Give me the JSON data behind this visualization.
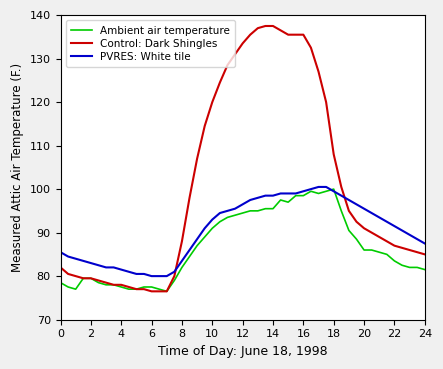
{
  "title": "",
  "xlabel": "Time of Day: June 18, 1998",
  "ylabel": "Measured Attic Air Temperature (F.)",
  "xlim": [
    0,
    24
  ],
  "ylim": [
    70,
    140
  ],
  "xticks": [
    0,
    2,
    4,
    6,
    8,
    10,
    12,
    14,
    16,
    18,
    20,
    22,
    24
  ],
  "yticks": [
    70,
    80,
    90,
    100,
    110,
    120,
    130,
    140
  ],
  "legend": [
    "Ambient air temperature",
    "Control: Dark Shingles",
    "PVRES: White tile"
  ],
  "colors": [
    "#00cc00",
    "#cc0000",
    "#0000cc"
  ],
  "ambient": {
    "x": [
      0,
      0.5,
      1,
      1.5,
      2,
      2.5,
      3,
      3.5,
      4,
      4.5,
      5,
      5.5,
      6,
      6.5,
      7,
      7.5,
      8,
      8.5,
      9,
      9.5,
      10,
      10.5,
      11,
      11.5,
      12,
      12.5,
      13,
      13.5,
      14,
      14.5,
      15,
      15.5,
      16,
      16.5,
      17,
      17.5,
      18,
      18.5,
      19,
      19.5,
      20,
      20.5,
      21,
      21.5,
      22,
      22.5,
      23,
      23.5,
      24
    ],
    "y": [
      78.5,
      77.5,
      77.0,
      79.5,
      79.5,
      78.5,
      78.0,
      78.0,
      77.5,
      77.0,
      77.0,
      77.5,
      77.5,
      77.0,
      76.5,
      79.0,
      82.0,
      84.5,
      87.0,
      89.0,
      91.0,
      92.5,
      93.5,
      94.0,
      94.5,
      95.0,
      95.0,
      95.5,
      95.5,
      97.5,
      97.0,
      98.5,
      98.5,
      99.5,
      99.0,
      99.5,
      100.0,
      95.0,
      90.5,
      88.5,
      86.0,
      86.0,
      85.5,
      85.0,
      83.5,
      82.5,
      82.0,
      82.0,
      81.5
    ]
  },
  "control": {
    "x": [
      0,
      0.5,
      1,
      1.5,
      2,
      2.5,
      3,
      3.5,
      4,
      4.5,
      5,
      5.5,
      6,
      6.5,
      7,
      7.5,
      8,
      8.5,
      9,
      9.5,
      10,
      10.5,
      11,
      11.5,
      12,
      12.5,
      13,
      13.5,
      14,
      14.5,
      15,
      15.5,
      16,
      16.5,
      17,
      17.5,
      18,
      18.5,
      19,
      19.5,
      20,
      20.5,
      21,
      21.5,
      22,
      22.5,
      23,
      23.5,
      24
    ],
    "y": [
      82.0,
      80.5,
      80.0,
      79.5,
      79.5,
      79.0,
      78.5,
      78.0,
      78.0,
      77.5,
      77.0,
      77.0,
      76.5,
      76.5,
      76.5,
      80.0,
      88.0,
      98.0,
      107.0,
      114.5,
      120.0,
      124.5,
      128.5,
      131.0,
      133.5,
      135.5,
      137.0,
      137.5,
      137.5,
      136.5,
      135.5,
      135.5,
      135.5,
      132.5,
      127.0,
      120.0,
      108.0,
      100.5,
      95.0,
      92.5,
      91.0,
      90.0,
      89.0,
      88.0,
      87.0,
      86.5,
      86.0,
      85.5,
      85.0
    ]
  },
  "pvres": {
    "x": [
      0,
      0.5,
      1,
      1.5,
      2,
      2.5,
      3,
      3.5,
      4,
      4.5,
      5,
      5.5,
      6,
      6.5,
      7,
      7.5,
      8,
      8.5,
      9,
      9.5,
      10,
      10.5,
      11,
      11.5,
      12,
      12.5,
      13,
      13.5,
      14,
      14.5,
      15,
      15.5,
      16,
      16.5,
      17,
      17.5,
      18,
      18.5,
      19,
      19.5,
      20,
      20.5,
      21,
      21.5,
      22,
      22.5,
      23,
      23.5,
      24
    ],
    "y": [
      85.5,
      84.5,
      84.0,
      83.5,
      83.0,
      82.5,
      82.0,
      82.0,
      81.5,
      81.0,
      80.5,
      80.5,
      80.0,
      80.0,
      80.0,
      81.0,
      83.5,
      86.0,
      88.5,
      91.0,
      93.0,
      94.5,
      95.0,
      95.5,
      96.5,
      97.5,
      98.0,
      98.5,
      98.5,
      99.0,
      99.0,
      99.0,
      99.5,
      100.0,
      100.5,
      100.5,
      99.5,
      98.5,
      97.5,
      96.5,
      95.5,
      94.5,
      93.5,
      92.5,
      91.5,
      90.5,
      89.5,
      88.5,
      87.5
    ]
  }
}
